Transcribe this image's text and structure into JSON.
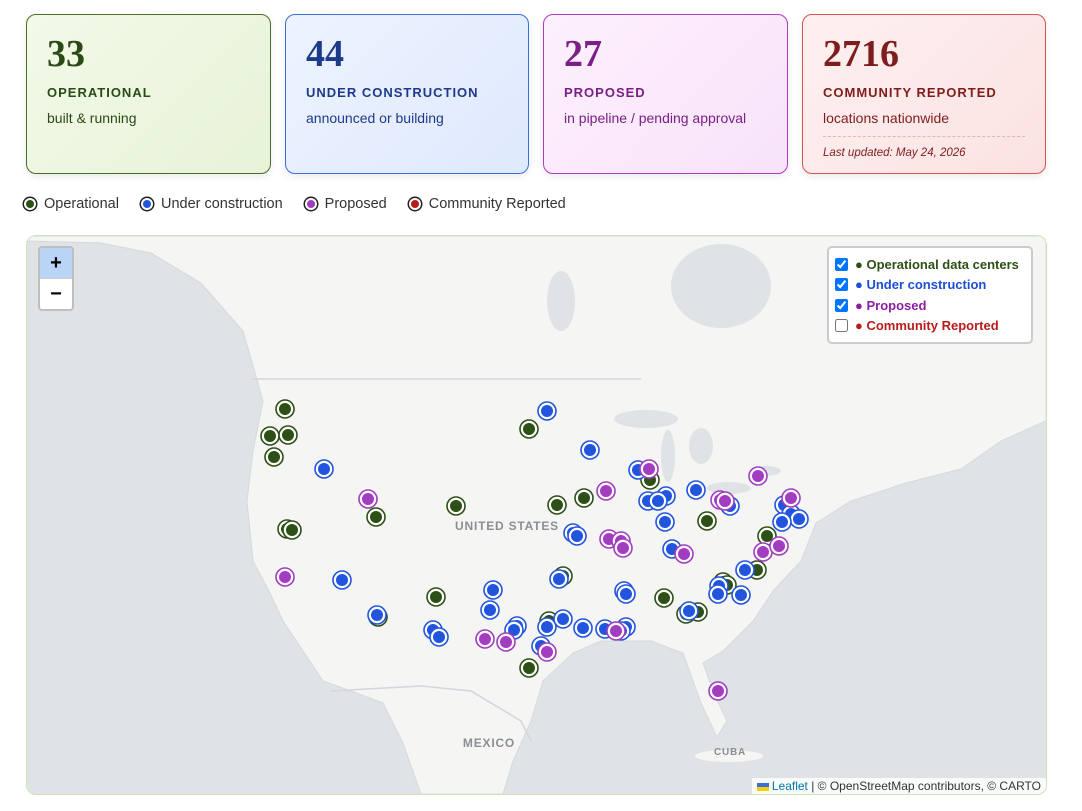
{
  "cards": [
    {
      "value": 33,
      "label": "OPERATIONAL",
      "sub": "built & running"
    },
    {
      "value": 44,
      "label": "UNDER CONSTRUCTION",
      "sub": "announced or building"
    },
    {
      "value": 27,
      "label": "PROPOSED",
      "sub": "in pipeline / pending approval"
    },
    {
      "value": 2716,
      "label": "COMMUNITY REPORTED",
      "sub": "locations nationwide",
      "note": "Last updated: May 24, 2026"
    }
  ],
  "legend": [
    "Operational",
    "Under construction",
    "Proposed",
    "Community Reported"
  ],
  "map": {
    "zoom": [
      "+",
      "−"
    ],
    "layers": [
      {
        "label": "● Operational data centers",
        "checked": true
      },
      {
        "label": "● Under construction",
        "checked": true
      },
      {
        "label": "● Proposed",
        "checked": true
      },
      {
        "label": "● Community Reported",
        "checked": false
      }
    ],
    "labels": [
      "UNITED STATES",
      "MEXICO",
      "CUBA"
    ],
    "attribution": {
      "link": "Leaflet",
      "text": "| © OpenStreetMap contributors, © CARTO"
    }
  }
}
